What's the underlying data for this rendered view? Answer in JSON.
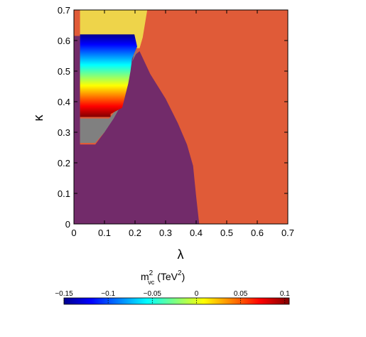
{
  "chart_data": {
    "type": "heatmap",
    "xlabel": "λ",
    "ylabel": "κ",
    "xlim": [
      0,
      0.7
    ],
    "ylim": [
      0,
      0.7
    ],
    "xticks": [
      "0",
      "0.1",
      "0.2",
      "0.3",
      "0.4",
      "0.5",
      "0.6",
      "0.7"
    ],
    "yticks": [
      "0",
      "0.1",
      "0.2",
      "0.3",
      "0.4",
      "0.5",
      "0.6",
      "0.7"
    ],
    "regions": [
      {
        "name": "orange-region",
        "color": "#e05b38",
        "points": [
          [
            0,
            0
          ],
          [
            0.7,
            0
          ],
          [
            0.7,
            0.7
          ],
          [
            0,
            0.7
          ]
        ]
      },
      {
        "name": "yellow-region",
        "color": "#eed44a",
        "points": [
          [
            0.02,
            0.7
          ],
          [
            0.24,
            0.7
          ],
          [
            0.225,
            0.61
          ],
          [
            0.215,
            0.575
          ],
          [
            0.02,
            0.575
          ]
        ]
      },
      {
        "name": "purple-region",
        "color": "#722b6a",
        "points": [
          [
            0,
            0
          ],
          [
            0.41,
            0
          ],
          [
            0.4,
            0.09
          ],
          [
            0.39,
            0.19
          ],
          [
            0.37,
            0.26
          ],
          [
            0.34,
            0.33
          ],
          [
            0.3,
            0.41
          ],
          [
            0.25,
            0.49
          ],
          [
            0.215,
            0.565
          ],
          [
            0.19,
            0.545
          ],
          [
            0.17,
            0.5
          ],
          [
            0.16,
            0.44
          ],
          [
            0.14,
            0.38
          ],
          [
            0.1,
            0.3
          ],
          [
            0.07,
            0.26
          ],
          [
            0.02,
            0.26
          ],
          [
            0.02,
            0.615
          ],
          [
            0,
            0.615
          ]
        ]
      },
      {
        "name": "gray-region",
        "color": "#808080",
        "points": [
          [
            0.02,
            0.265
          ],
          [
            0.07,
            0.265
          ],
          [
            0.1,
            0.3
          ],
          [
            0.13,
            0.345
          ],
          [
            0.155,
            0.39
          ],
          [
            0.168,
            0.44
          ],
          [
            0.178,
            0.49
          ],
          [
            0.19,
            0.53
          ],
          [
            0.205,
            0.56
          ],
          [
            0.21,
            0.575
          ],
          [
            0.195,
            0.55
          ],
          [
            0.183,
            0.5
          ],
          [
            0.175,
            0.46
          ],
          [
            0.16,
            0.42
          ],
          [
            0.14,
            0.375
          ],
          [
            0.115,
            0.345
          ],
          [
            0.02,
            0.345
          ]
        ]
      }
    ],
    "heat_region": {
      "name": "mass-scan-region",
      "left_x": 0.02,
      "right_boundary": [
        [
          0.62,
          0.198
        ],
        [
          0.58,
          0.207
        ],
        [
          0.54,
          0.19
        ],
        [
          0.5,
          0.185
        ],
        [
          0.46,
          0.178
        ],
        [
          0.42,
          0.168
        ],
        [
          0.38,
          0.158
        ],
        [
          0.36,
          0.12
        ],
        [
          0.35,
          0.12
        ]
      ],
      "value_top": -0.15,
      "value_bottom": 0.1
    },
    "colorbar": {
      "label_main": "m",
      "label_sup": "2",
      "label_sub": "νc",
      "label_unit": "(TeV",
      "label_unit_sup": "2",
      "label_close": ")",
      "ticks": [
        "−0.15",
        "−0.1",
        "−0.05",
        "0",
        "0.05",
        "0.1"
      ],
      "tick_values": [
        -0.15,
        -0.1,
        -0.05,
        0,
        0.05,
        0.1
      ],
      "range": [
        -0.15,
        0.105
      ],
      "colormap": "jet"
    }
  }
}
